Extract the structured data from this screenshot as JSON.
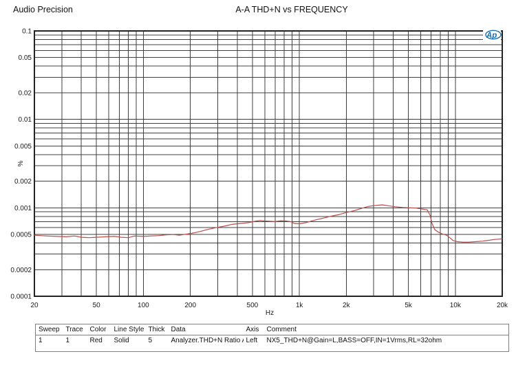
{
  "header": {
    "brand": "Audio Precision",
    "title": "A-A THD+N vs FREQUENCY"
  },
  "chart_data": {
    "type": "line",
    "title": "A-A THD+N vs FREQUENCY",
    "grid": true,
    "grid_color": "#3f3f3f",
    "border_color": "#222222",
    "logo_text": "Ap",
    "logo_color": "#1c6fad",
    "x_axis": {
      "label": "Hz",
      "scale": "log",
      "min": 20,
      "max": 20000,
      "ticks": [
        {
          "v": 20,
          "label": "20"
        },
        {
          "v": 50,
          "label": "50"
        },
        {
          "v": 100,
          "label": "100"
        },
        {
          "v": 200,
          "label": "200"
        },
        {
          "v": 500,
          "label": "500"
        },
        {
          "v": 1000,
          "label": "1k"
        },
        {
          "v": 2000,
          "label": "2k"
        },
        {
          "v": 5000,
          "label": "5k"
        },
        {
          "v": 10000,
          "label": "10k"
        },
        {
          "v": 20000,
          "label": "20k"
        }
      ],
      "gridlines": [
        20,
        30,
        40,
        50,
        60,
        70,
        80,
        90,
        100,
        200,
        300,
        400,
        500,
        600,
        700,
        800,
        900,
        1000,
        2000,
        3000,
        4000,
        5000,
        6000,
        7000,
        8000,
        9000,
        10000,
        20000
      ]
    },
    "y_axis": {
      "label": "%",
      "scale": "log",
      "min": 0.0001,
      "max": 0.1,
      "ticks": [
        {
          "v": 0.1,
          "label": "0.1"
        },
        {
          "v": 0.05,
          "label": "0.05"
        },
        {
          "v": 0.02,
          "label": "0.02"
        },
        {
          "v": 0.01,
          "label": "0.01"
        },
        {
          "v": 0.005,
          "label": "0.005"
        },
        {
          "v": 0.002,
          "label": "0.002"
        },
        {
          "v": 0.001,
          "label": "0.001"
        },
        {
          "v": 0.0005,
          "label": "0.0005"
        },
        {
          "v": 0.0002,
          "label": "0.0002"
        },
        {
          "v": 0.0001,
          "label": "0.0001"
        }
      ],
      "gridlines": [
        0.0001,
        0.0002,
        0.0003,
        0.0004,
        0.0005,
        0.0006,
        0.0007,
        0.0008,
        0.0009,
        0.001,
        0.002,
        0.003,
        0.004,
        0.005,
        0.006,
        0.007,
        0.008,
        0.009,
        0.01,
        0.02,
        0.03,
        0.04,
        0.05,
        0.06,
        0.07,
        0.08,
        0.09,
        0.1
      ]
    },
    "series": [
      {
        "name": "Analyzer.THD+N Ratio A",
        "color": "#bc4a46",
        "points": [
          [
            20,
            0.00049
          ],
          [
            24,
            0.00048
          ],
          [
            28,
            0.000475
          ],
          [
            32,
            0.00047
          ],
          [
            36,
            0.00048
          ],
          [
            40,
            0.000465
          ],
          [
            45,
            0.00046
          ],
          [
            50,
            0.000465
          ],
          [
            57,
            0.00047
          ],
          [
            65,
            0.000475
          ],
          [
            72,
            0.000465
          ],
          [
            80,
            0.00046
          ],
          [
            88,
            0.00048
          ],
          [
            100,
            0.000475
          ],
          [
            112,
            0.00048
          ],
          [
            125,
            0.000485
          ],
          [
            140,
            0.000495
          ],
          [
            155,
            0.0005
          ],
          [
            170,
            0.00049
          ],
          [
            190,
            0.000505
          ],
          [
            210,
            0.00052
          ],
          [
            235,
            0.000545
          ],
          [
            260,
            0.00057
          ],
          [
            290,
            0.000595
          ],
          [
            330,
            0.00062
          ],
          [
            370,
            0.00065
          ],
          [
            420,
            0.000665
          ],
          [
            470,
            0.00068
          ],
          [
            520,
            0.000705
          ],
          [
            560,
            0.00072
          ],
          [
            600,
            0.00071
          ],
          [
            650,
            0.000705
          ],
          [
            700,
            0.0007
          ],
          [
            760,
            0.000715
          ],
          [
            820,
            0.00071
          ],
          [
            880,
            0.0007
          ],
          [
            930,
            0.000665
          ],
          [
            1000,
            0.00066
          ],
          [
            1100,
            0.00068
          ],
          [
            1250,
            0.000725
          ],
          [
            1400,
            0.00076
          ],
          [
            1600,
            0.000805
          ],
          [
            1800,
            0.00084
          ],
          [
            2000,
            0.000885
          ],
          [
            2250,
            0.00093
          ],
          [
            2500,
            0.000985
          ],
          [
            2800,
            0.00104
          ],
          [
            3100,
            0.001065
          ],
          [
            3400,
            0.00108
          ],
          [
            3700,
            0.001055
          ],
          [
            4100,
            0.00103
          ],
          [
            4600,
            0.00101
          ],
          [
            5100,
            0.001
          ],
          [
            5600,
            0.000995
          ],
          [
            6100,
            0.00097
          ],
          [
            6600,
            0.00095
          ],
          [
            6900,
            0.00082
          ],
          [
            7100,
            0.00066
          ],
          [
            7400,
            0.000565
          ],
          [
            7800,
            0.00053
          ],
          [
            8300,
            0.000505
          ],
          [
            8800,
            0.00049
          ],
          [
            9200,
            0.00046
          ],
          [
            9700,
            0.000425
          ],
          [
            10300,
            0.000415
          ],
          [
            11200,
            0.00041
          ],
          [
            12200,
            0.00041
          ],
          [
            13500,
            0.000415
          ],
          [
            15000,
            0.00042
          ],
          [
            16500,
            0.00043
          ],
          [
            18000,
            0.00044
          ],
          [
            20000,
            0.000445
          ]
        ]
      }
    ]
  },
  "table": {
    "headers": [
      "Sweep",
      "Trace",
      "Color",
      "Line Style",
      "Thick",
      "Data",
      "Axis",
      "Comment"
    ],
    "rows": [
      [
        "1",
        "1",
        "Red",
        "Solid",
        "5",
        "Analyzer.THD+N Ratio A",
        "Left",
        "NX5_THD+N@Gain=L,BASS=OFF,IN=1Vrms,RL=32ohm"
      ]
    ]
  }
}
